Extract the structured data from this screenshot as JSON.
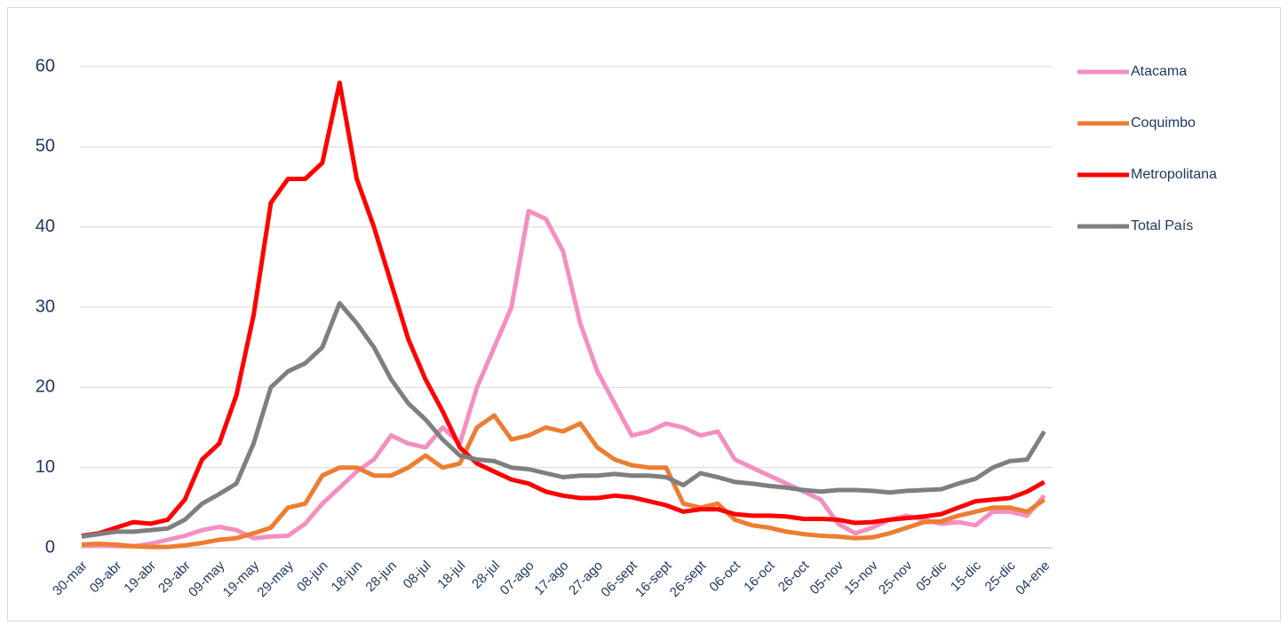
{
  "chart_data": {
    "type": "line",
    "categories": [
      "30-mar",
      null,
      "09-abr",
      null,
      "19-abr",
      null,
      "29-abr",
      null,
      "09-may",
      null,
      "19-may",
      null,
      "29-may",
      null,
      "08-jun",
      null,
      "18-jun",
      null,
      "28-jun",
      null,
      "08-jul",
      null,
      "18-jul",
      null,
      "28-jul",
      null,
      "07-ago",
      null,
      "17-ago",
      null,
      "27-ago",
      null,
      "06-sept",
      null,
      "16-sept",
      null,
      "26-sept",
      null,
      "06-oct",
      null,
      "16-oct",
      null,
      "26-oct",
      null,
      "05-nov",
      null,
      "15-nov",
      null,
      "25-nov",
      null,
      "05-dic",
      null,
      "15-dic",
      null,
      "25-dic",
      null,
      "04-ene"
    ],
    "series": [
      {
        "name": "Atacama",
        "color": "#f48fc1",
        "values": [
          0.3,
          0.3,
          0.2,
          0.2,
          0.5,
          1.0,
          1.5,
          2.2,
          2.6,
          2.2,
          1.2,
          1.4,
          1.5,
          3,
          5.5,
          7.5,
          9.5,
          11,
          14,
          13,
          12.5,
          15,
          13,
          20,
          25,
          30,
          42,
          41,
          37,
          28,
          22,
          18,
          14,
          14.5,
          15.5,
          15,
          14,
          14.5,
          11,
          10,
          9,
          8,
          7,
          6,
          3,
          1.8,
          2.5,
          3.5,
          4,
          3.5,
          3,
          3.2,
          2.8,
          4.5,
          4.5,
          4,
          6.5
        ]
      },
      {
        "name": "Coquimbo",
        "color": "#ed7d31",
        "values": [
          0.4,
          0.5,
          0.4,
          0.2,
          0.1,
          0.1,
          0.3,
          0.6,
          1.0,
          1.2,
          1.8,
          2.5,
          5,
          5.5,
          9,
          10,
          10,
          9,
          9,
          10,
          11.5,
          10,
          10.5,
          15,
          16.5,
          13.5,
          14,
          15,
          14.5,
          15.5,
          12.5,
          11,
          10.3,
          10,
          10,
          5.5,
          5,
          5.5,
          3.5,
          2.8,
          2.5,
          2,
          1.7,
          1.5,
          1.4,
          1.2,
          1.3,
          1.8,
          2.5,
          3.2,
          3.3,
          4,
          4.5,
          5,
          5,
          4.5,
          6
        ]
      },
      {
        "name": "Metropolitana",
        "color": "#ff0000",
        "values": [
          1.5,
          1.8,
          2.5,
          3.2,
          3.0,
          3.5,
          6,
          11,
          13,
          19,
          29,
          43,
          46,
          46,
          48,
          58,
          46,
          40,
          33,
          26,
          21,
          17,
          12.5,
          10.5,
          9.5,
          8.5,
          8,
          7,
          6.5,
          6.2,
          6.2,
          6.5,
          6.3,
          5.8,
          5.3,
          4.5,
          4.8,
          4.8,
          4.2,
          4,
          4,
          3.9,
          3.6,
          3.6,
          3.5,
          3.1,
          3.2,
          3.5,
          3.7,
          3.9,
          4.2,
          5,
          5.8,
          6,
          6.2,
          7,
          8.2
        ]
      },
      {
        "name": "Total País",
        "color": "#7f7f7f",
        "values": [
          1.4,
          1.7,
          2,
          2,
          2.2,
          2.4,
          3.5,
          5.5,
          6.7,
          8,
          13,
          20,
          22,
          23,
          25,
          30.5,
          28,
          25,
          21,
          18,
          16,
          13.5,
          11.5,
          11,
          10.8,
          10,
          9.8,
          9.3,
          8.8,
          9,
          9,
          9.2,
          9,
          9,
          8.8,
          7.8,
          9.3,
          8.8,
          8.2,
          8,
          7.7,
          7.5,
          7.2,
          7,
          7.2,
          7.2,
          7.1,
          6.9,
          7.1,
          7.2,
          7.3,
          8,
          8.6,
          10,
          10.8,
          11,
          14.5
        ]
      }
    ],
    "ylim": [
      0,
      60
    ],
    "yticks": [
      0,
      10,
      20,
      30,
      40,
      50,
      60
    ],
    "grid": true,
    "legend": "right"
  }
}
